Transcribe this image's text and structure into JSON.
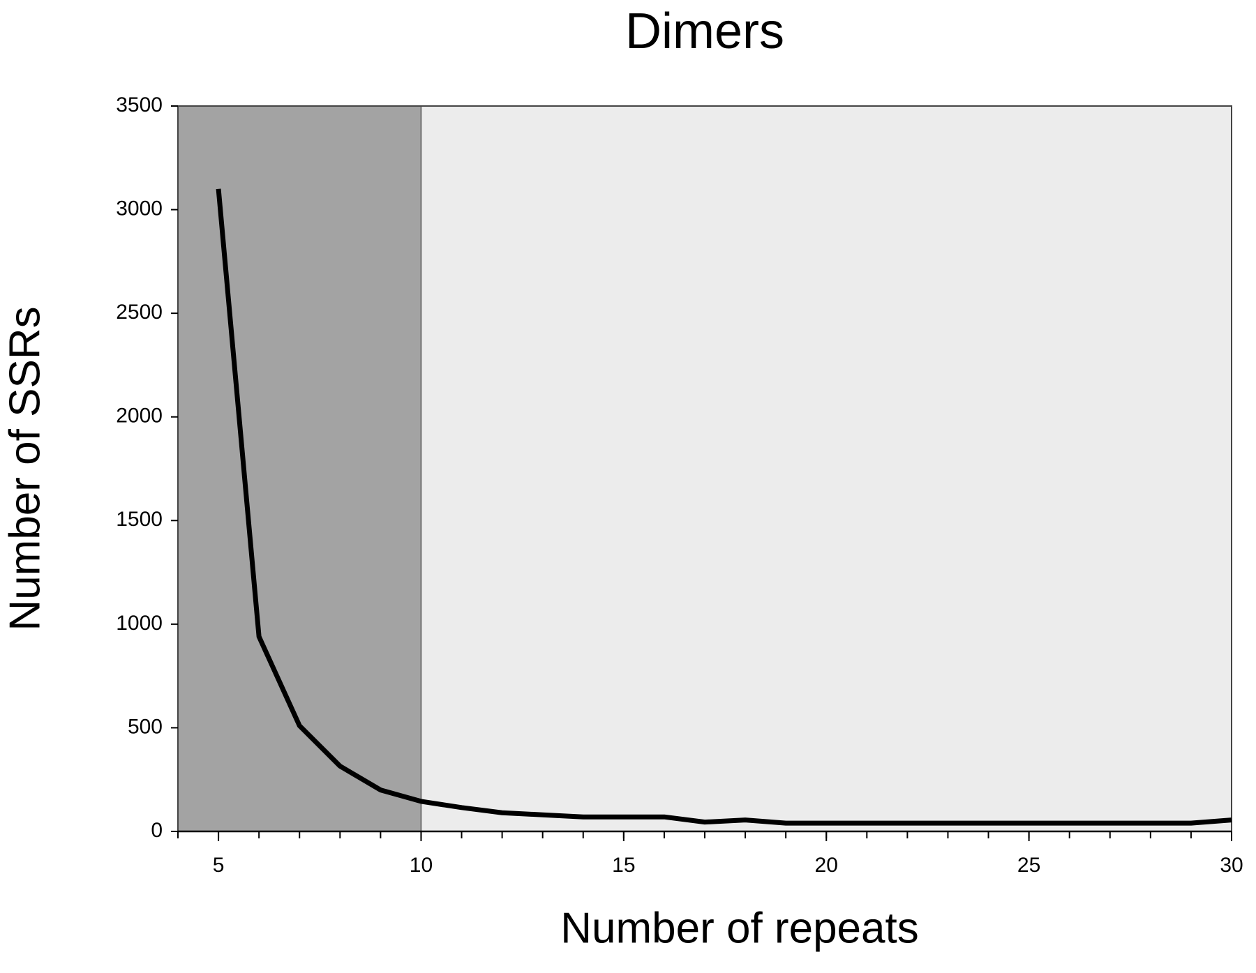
{
  "chart_data": {
    "type": "line",
    "title": "Dimers",
    "xlabel": "Number of repeats",
    "ylabel": "Number of SSRs",
    "x": [
      5,
      6,
      7,
      8,
      9,
      10,
      11,
      12,
      13,
      14,
      15,
      16,
      17,
      18,
      19,
      20,
      21,
      22,
      23,
      24,
      25,
      26,
      27,
      28,
      29,
      30
    ],
    "series": [
      {
        "name": "Dimers",
        "color": "#000000",
        "values": [
          3100,
          940,
          510,
          315,
          200,
          145,
          115,
          90,
          80,
          70,
          70,
          70,
          45,
          55,
          40,
          40,
          40,
          40,
          40,
          40,
          40,
          40,
          40,
          40,
          40,
          55
        ]
      }
    ],
    "xlim": [
      4,
      30
    ],
    "xticks": [
      5,
      10,
      15,
      20,
      25,
      30
    ],
    "xminorticks": [
      4,
      5,
      6,
      7,
      8,
      9,
      10,
      11,
      12,
      13,
      14,
      15,
      16,
      17,
      18,
      19,
      20,
      21,
      22,
      23,
      24,
      25,
      26,
      27,
      28,
      29,
      30
    ],
    "ylim": [
      0,
      3500
    ],
    "yticks": [
      0,
      500,
      1000,
      1500,
      2000,
      2500,
      3000,
      3500
    ],
    "shaded_xrange": [
      4,
      10
    ],
    "shade_color": "#a3a3a3",
    "background_color": "#ececec",
    "grid": false
  }
}
